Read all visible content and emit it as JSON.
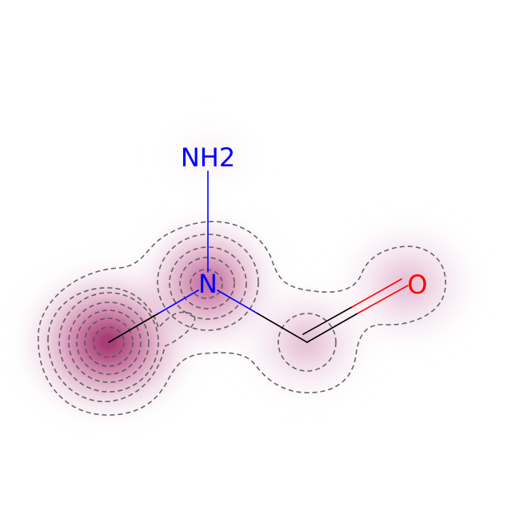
{
  "molecule": {
    "atoms": {
      "amine_label": "NH2",
      "nitrogen_label": "N",
      "oxygen_label": "O"
    },
    "colors": {
      "background": "#ffffff",
      "bond_carbon": "#000000",
      "nitrogen": "#0000ff",
      "oxygen": "#ff0000",
      "density_high": "#8b0a50",
      "contour": "#555555"
    }
  }
}
